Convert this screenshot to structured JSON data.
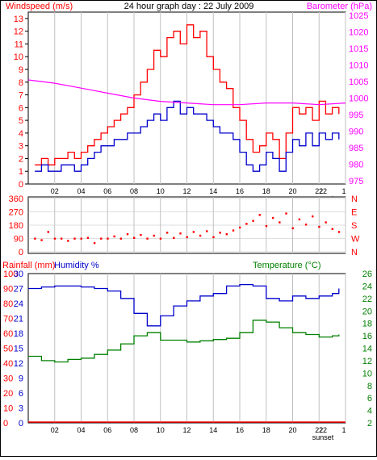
{
  "colors": {
    "windspeed": "#ff0000",
    "gust": "#ff0000",
    "avg_wind": "#0000cc",
    "barometer": "#ff00ff",
    "direction": "#ff0000",
    "rainfall": "#ff0000",
    "humidity": "#0000cc",
    "temperature": "#008000",
    "grid": "#c0c0c0",
    "axis": "#000000"
  },
  "chart_data": [
    {
      "type": "line",
      "title": "24 hour graph day : 22 July 2009",
      "left_label": "Windspeed (m/s)",
      "right_label": "Barometer (hPa)",
      "x_ticks": [
        "02",
        "04",
        "06",
        "08",
        "10",
        "12",
        "14",
        "16",
        "18",
        "20",
        "22",
        "sunset"
      ],
      "y_left_ticks": [
        "0",
        "1",
        "2",
        "3",
        "4",
        "5",
        "6",
        "7",
        "8",
        "9",
        "10",
        "11",
        "12",
        "13"
      ],
      "y_left_range": [
        0,
        13.5
      ],
      "y_right_ticks": [
        "975",
        "980",
        "985",
        "990",
        "995",
        "1000",
        "1005",
        "1010",
        "1015",
        "1020",
        "1025"
      ],
      "y_right_range": [
        974,
        1026
      ],
      "x_range": [
        0,
        24
      ],
      "grid": true,
      "series": [
        {
          "x": [
            0.5,
            1,
            1.5,
            2,
            2.5,
            3,
            3.5,
            4,
            4.5,
            5,
            5.5,
            6,
            6.5,
            7,
            7.5,
            8,
            8.5,
            9,
            9.5,
            10,
            10.5,
            11,
            11.5,
            12,
            12.5,
            13,
            13.5,
            14,
            14.5,
            15,
            15.5,
            16,
            16.5,
            17,
            17.5,
            18,
            18.5,
            19,
            19.5,
            20,
            20.5,
            21,
            21.5,
            22,
            22.5,
            23,
            23.5
          ],
          "values": [
            1.5,
            2,
            1.5,
            2,
            2,
            2.5,
            2,
            2.5,
            3,
            3.5,
            4,
            4.5,
            5,
            5.5,
            6,
            7,
            8,
            9,
            10.5,
            10,
            11.5,
            12,
            11,
            12.5,
            11.5,
            12,
            10,
            9,
            8,
            7.5,
            6,
            5,
            3.5,
            2.5,
            3,
            4,
            3.5,
            2,
            4,
            6,
            5.5,
            6,
            5,
            6.5,
            5.5,
            6,
            5.5
          ]
        },
        {
          "x": [
            0.5,
            1,
            1.5,
            2,
            2.5,
            3,
            3.5,
            4,
            4.5,
            5,
            5.5,
            6,
            6.5,
            7,
            7.5,
            8,
            8.5,
            9,
            9.5,
            10,
            10.5,
            11,
            11.5,
            12,
            12.5,
            13,
            13.5,
            14,
            14.5,
            15,
            15.5,
            16,
            16.5,
            17,
            17.5,
            18,
            18.5,
            19,
            19.5,
            20,
            20.5,
            21,
            21.5,
            22,
            22.5,
            23,
            23.5
          ],
          "values": [
            1,
            1.5,
            1,
            1,
            1.5,
            1.5,
            1,
            1.5,
            2,
            2.5,
            3,
            3,
            3.5,
            3.5,
            4,
            4,
            4.5,
            5,
            5.5,
            5,
            6,
            6.5,
            5.5,
            6,
            5.5,
            5.5,
            5,
            4.5,
            4,
            4,
            3.5,
            2.5,
            1.5,
            1,
            1.5,
            2.5,
            2,
            1,
            2.5,
            3.5,
            3,
            4,
            3,
            4,
            3.5,
            4,
            3.5
          ]
        },
        {
          "x": [
            0,
            2,
            4,
            6,
            8,
            10,
            12,
            14,
            16,
            18,
            20,
            22,
            24
          ],
          "values": [
            1005.5,
            1004.5,
            1003,
            1001.5,
            1000,
            999,
            998.5,
            998,
            998,
            998.5,
            998.5,
            998,
            998.5
          ]
        }
      ]
    },
    {
      "type": "scatter",
      "y_ticks": [
        "0",
        "90",
        "180",
        "270",
        "360"
      ],
      "y_range": [
        0,
        360
      ],
      "right_ticks": [
        "N",
        "W",
        "S",
        "E",
        "N"
      ],
      "x_range": [
        0,
        24
      ],
      "x": [
        0.5,
        1,
        1.5,
        2,
        2.5,
        3,
        3.5,
        4,
        4.5,
        5,
        5.5,
        6,
        6.5,
        7,
        7.5,
        8,
        8.5,
        9,
        9.5,
        10,
        10.5,
        11,
        11.5,
        12,
        12.5,
        13,
        13.5,
        14,
        14.5,
        15,
        15.5,
        16,
        16.5,
        17,
        17.5,
        18,
        18.5,
        19,
        19.5,
        20,
        20.5,
        21,
        21.5,
        22,
        22.5,
        23,
        23.5
      ],
      "values": [
        90,
        80,
        135,
        90,
        90,
        75,
        90,
        90,
        95,
        60,
        90,
        90,
        105,
        90,
        120,
        95,
        115,
        90,
        110,
        90,
        130,
        95,
        125,
        100,
        135,
        110,
        140,
        100,
        130,
        120,
        145,
        165,
        190,
        210,
        250,
        175,
        230,
        200,
        260,
        160,
        220,
        185,
        240,
        170,
        200,
        155,
        135
      ]
    },
    {
      "type": "line",
      "rainfall_label": "Rainfall (mm)",
      "humidity_label": "Humidity %",
      "temperature_label": "Temperature (°C)",
      "y_rain_ticks": [
        "0",
        "10",
        "20",
        "30",
        "40",
        "50",
        "60",
        "70",
        "80",
        "90",
        "100"
      ],
      "y_rain_range": [
        0,
        100
      ],
      "y_hum_ticks": [
        "0",
        "3",
        "6",
        "9",
        "12",
        "15",
        "18",
        "21",
        "24",
        "27",
        "30"
      ],
      "y_temp_ticks": [
        "2",
        "4",
        "6",
        "8",
        "10",
        "12",
        "14",
        "16",
        "18",
        "20",
        "22",
        "24",
        "26"
      ],
      "y_temp_range": [
        2,
        26
      ],
      "x_ticks": [
        "02",
        "04",
        "06",
        "08",
        "10",
        "12",
        "14",
        "16",
        "18",
        "20",
        "22",
        "sunset"
      ],
      "x_range": [
        0,
        24
      ],
      "grid": true,
      "series": [
        {
          "x": [
            0,
            24
          ],
          "values": [
            0,
            0
          ]
        },
        {
          "x": [
            0,
            1,
            2,
            3,
            4,
            5,
            6,
            7,
            8,
            9,
            10,
            11,
            12,
            13,
            14,
            15,
            16,
            17,
            18,
            19,
            20,
            21,
            22,
            23,
            23.5
          ],
          "values": [
            27,
            27.3,
            27.5,
            27.5,
            27.3,
            27,
            26.5,
            25,
            22,
            19.5,
            21.5,
            23.5,
            24.5,
            25.5,
            26,
            27.5,
            27.8,
            27.5,
            25,
            24.5,
            25.5,
            25,
            25.5,
            26,
            27
          ]
        },
        {
          "x": [
            0,
            1,
            2,
            3,
            4,
            5,
            6,
            7,
            8,
            9,
            10,
            11,
            12,
            13,
            14,
            15,
            16,
            17,
            18,
            19,
            20,
            21,
            22,
            23,
            23.5
          ],
          "values": [
            12.7,
            12,
            11.8,
            12.2,
            12.4,
            13,
            13.7,
            14.7,
            16,
            16.5,
            15.3,
            15.3,
            15,
            15.2,
            15.4,
            15.6,
            16.5,
            18.5,
            18.2,
            17.3,
            16.5,
            16.2,
            15.8,
            16,
            16.2
          ]
        }
      ]
    }
  ]
}
